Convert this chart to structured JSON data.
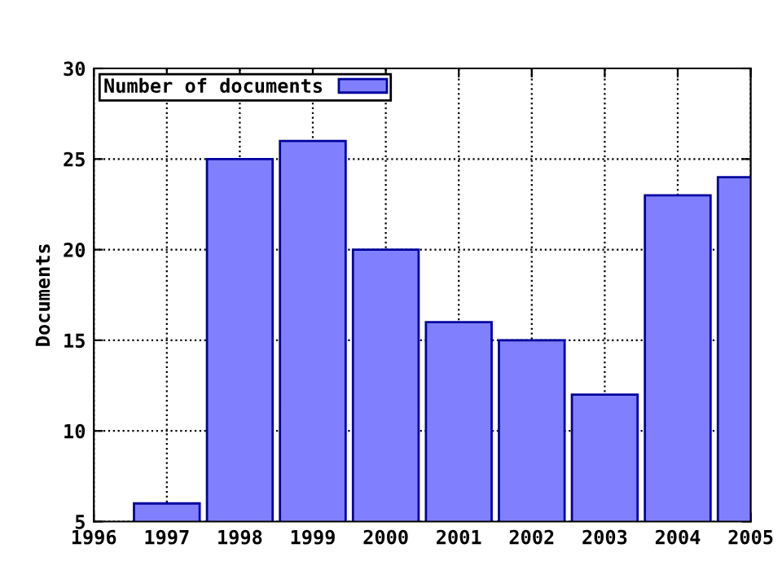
{
  "chart_data": {
    "type": "bar",
    "ylabel": "Documents",
    "x": [
      1997,
      1998,
      1999,
      2000,
      2001,
      2002,
      2003,
      2004,
      2005
    ],
    "series": [
      {
        "name": "Number of documents",
        "color": "#8080ff",
        "values": [
          6,
          25,
          26,
          20,
          16,
          15,
          12,
          23,
          24
        ]
      }
    ],
    "xlim": [
      1996,
      2005
    ],
    "xticks": [
      1996,
      1997,
      1998,
      1999,
      2000,
      2001,
      2002,
      2003,
      2004,
      2005
    ],
    "ylim": [
      5,
      30
    ],
    "yticks": [
      5,
      10,
      15,
      20,
      25,
      30
    ],
    "grid": true,
    "legend": "top left"
  }
}
